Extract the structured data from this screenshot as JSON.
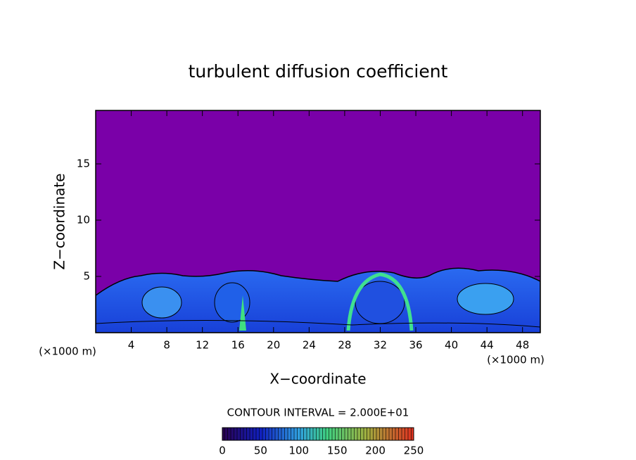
{
  "chart_data": {
    "type": "contour",
    "title": "turbulent diffusion coefficient",
    "xlabel": "X−coordinate",
    "ylabel": "Z−coordinate",
    "unit_label": "(×1000 m)",
    "xlim": [
      0,
      50
    ],
    "xticks": [
      4,
      8,
      12,
      16,
      20,
      24,
      28,
      32,
      36,
      40,
      44,
      48
    ],
    "ylim": [
      0,
      19.75
    ],
    "yticks": [
      5,
      10,
      15
    ],
    "colorbar": {
      "label": "CONTOUR INTERVAL = 2.000E+01",
      "lim": [
        0,
        250
      ],
      "ticks": [
        0,
        50,
        100,
        150,
        200,
        250
      ]
    }
  }
}
